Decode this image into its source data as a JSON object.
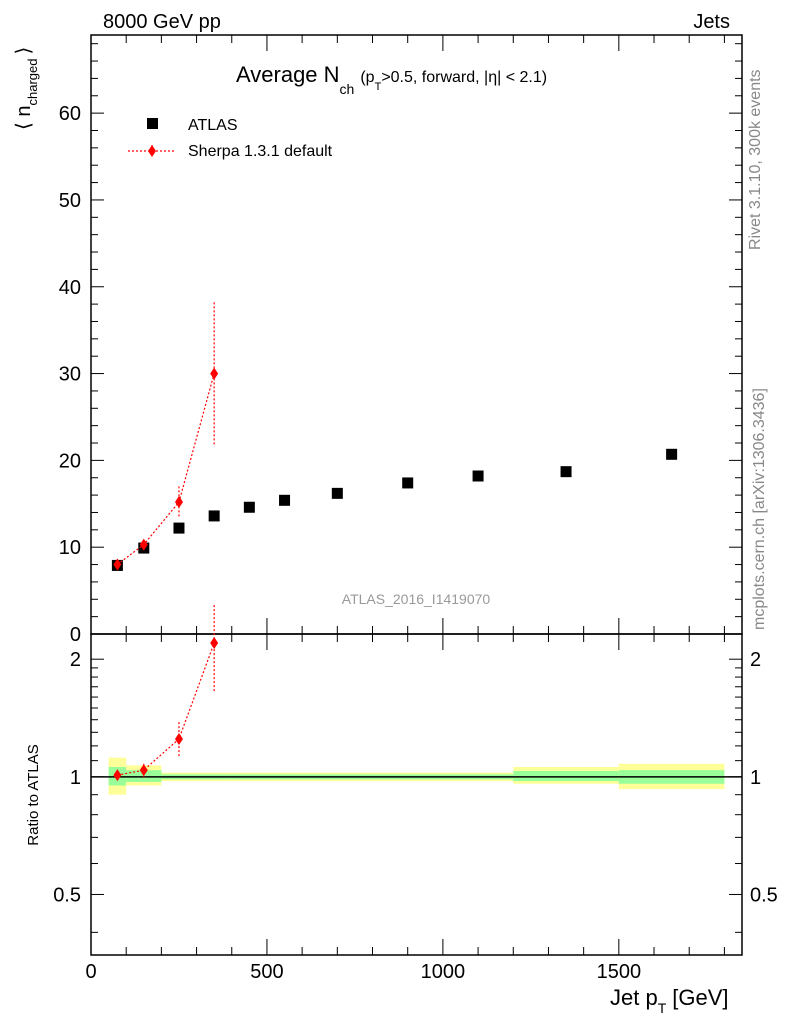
{
  "header": {
    "energy_label": "8000 GeV pp",
    "category_label": "Jets"
  },
  "side_labels": {
    "rivet": "Rivet 3.1.10,  300k events",
    "mcplots": "mcplots.cern.ch [arXiv:1306.3436]"
  },
  "watermark": "ATLAS_2016_I1419070",
  "colors": {
    "data": "#000000",
    "mc": "#ff0000",
    "band_inner": "#99ff99",
    "band_outer": "#ffff99",
    "watermark": "#9a9a9a"
  },
  "chart_data": [
    {
      "type": "scatter",
      "panel": "main",
      "title_main": "Average N",
      "title_sub": "ch",
      "title_rest_1": "(p",
      "title_rest_sub": "T",
      "title_rest_2": ">0.5, forward, |η| < 2.1)",
      "ylabel_main": "⟨ n",
      "ylabel_sub": "charged",
      "ylabel_close": "⟩",
      "xlim": [
        0,
        1850
      ],
      "ylim": [
        0,
        69
      ],
      "yticks": [
        0,
        10,
        20,
        30,
        40,
        50,
        60
      ],
      "legend_position": "top-left",
      "series": [
        {
          "name": "ATLAS",
          "marker": "square",
          "x": [
            75,
            150,
            250,
            350,
            450,
            550,
            700,
            900,
            1100,
            1350,
            1650
          ],
          "y": [
            7.9,
            9.9,
            12.2,
            13.6,
            14.6,
            15.4,
            16.2,
            17.4,
            18.2,
            18.7,
            20.7
          ]
        },
        {
          "name": "Sherpa 1.3.1 default",
          "marker": "diamond",
          "x": [
            75,
            150,
            250,
            350
          ],
          "y": [
            8.0,
            10.3,
            15.2,
            30.0
          ],
          "y_err": [
            0.3,
            0.5,
            1.8,
            8.2
          ]
        }
      ]
    },
    {
      "type": "scatter",
      "panel": "ratio",
      "ylabel": "Ratio to ATLAS",
      "xlabel_main": "Jet p",
      "xlabel_sub": "T",
      "xlabel_unit": "[GeV]",
      "xlim": [
        0,
        1850
      ],
      "ylim": [
        0.35,
        2.32
      ],
      "log_y": true,
      "yticks": [
        0.5,
        1,
        2
      ],
      "ytick_labels": [
        "0.5",
        "1",
        "2"
      ],
      "xticks": [
        0,
        500,
        1000,
        1500
      ],
      "xtick_labels": [
        "0",
        "500",
        "1000",
        "1500"
      ],
      "reference_line": 1,
      "bands": [
        {
          "x0": 50,
          "x1": 100,
          "inner": [
            0.95,
            1.06
          ],
          "outer": [
            0.9,
            1.12
          ]
        },
        {
          "x0": 100,
          "x1": 200,
          "inner": [
            0.97,
            1.04
          ],
          "outer": [
            0.95,
            1.07
          ]
        },
        {
          "x0": 200,
          "x1": 300,
          "inner": [
            0.985,
            1.015
          ],
          "outer": [
            0.975,
            1.025
          ]
        },
        {
          "x0": 300,
          "x1": 400,
          "inner": [
            0.985,
            1.015
          ],
          "outer": [
            0.975,
            1.025
          ]
        },
        {
          "x0": 400,
          "x1": 500,
          "inner": [
            0.985,
            1.015
          ],
          "outer": [
            0.975,
            1.025
          ]
        },
        {
          "x0": 500,
          "x1": 600,
          "inner": [
            0.985,
            1.015
          ],
          "outer": [
            0.975,
            1.025
          ]
        },
        {
          "x0": 600,
          "x1": 800,
          "inner": [
            0.985,
            1.015
          ],
          "outer": [
            0.975,
            1.025
          ]
        },
        {
          "x0": 800,
          "x1": 1000,
          "inner": [
            0.985,
            1.015
          ],
          "outer": [
            0.975,
            1.025
          ]
        },
        {
          "x0": 1000,
          "x1": 1200,
          "inner": [
            0.985,
            1.015
          ],
          "outer": [
            0.975,
            1.025
          ]
        },
        {
          "x0": 1200,
          "x1": 1500,
          "inner": [
            0.975,
            1.035
          ],
          "outer": [
            0.96,
            1.06
          ]
        },
        {
          "x0": 1500,
          "x1": 1800,
          "inner": [
            0.96,
            1.04
          ],
          "outer": [
            0.93,
            1.08
          ]
        }
      ],
      "series": [
        {
          "name": "Sherpa 1.3.1 default",
          "x": [
            75,
            150,
            250,
            350
          ],
          "y": [
            1.01,
            1.04,
            1.25,
            2.2
          ],
          "y_err": [
            0.03,
            0.04,
            0.13,
            0.55
          ]
        }
      ]
    }
  ]
}
